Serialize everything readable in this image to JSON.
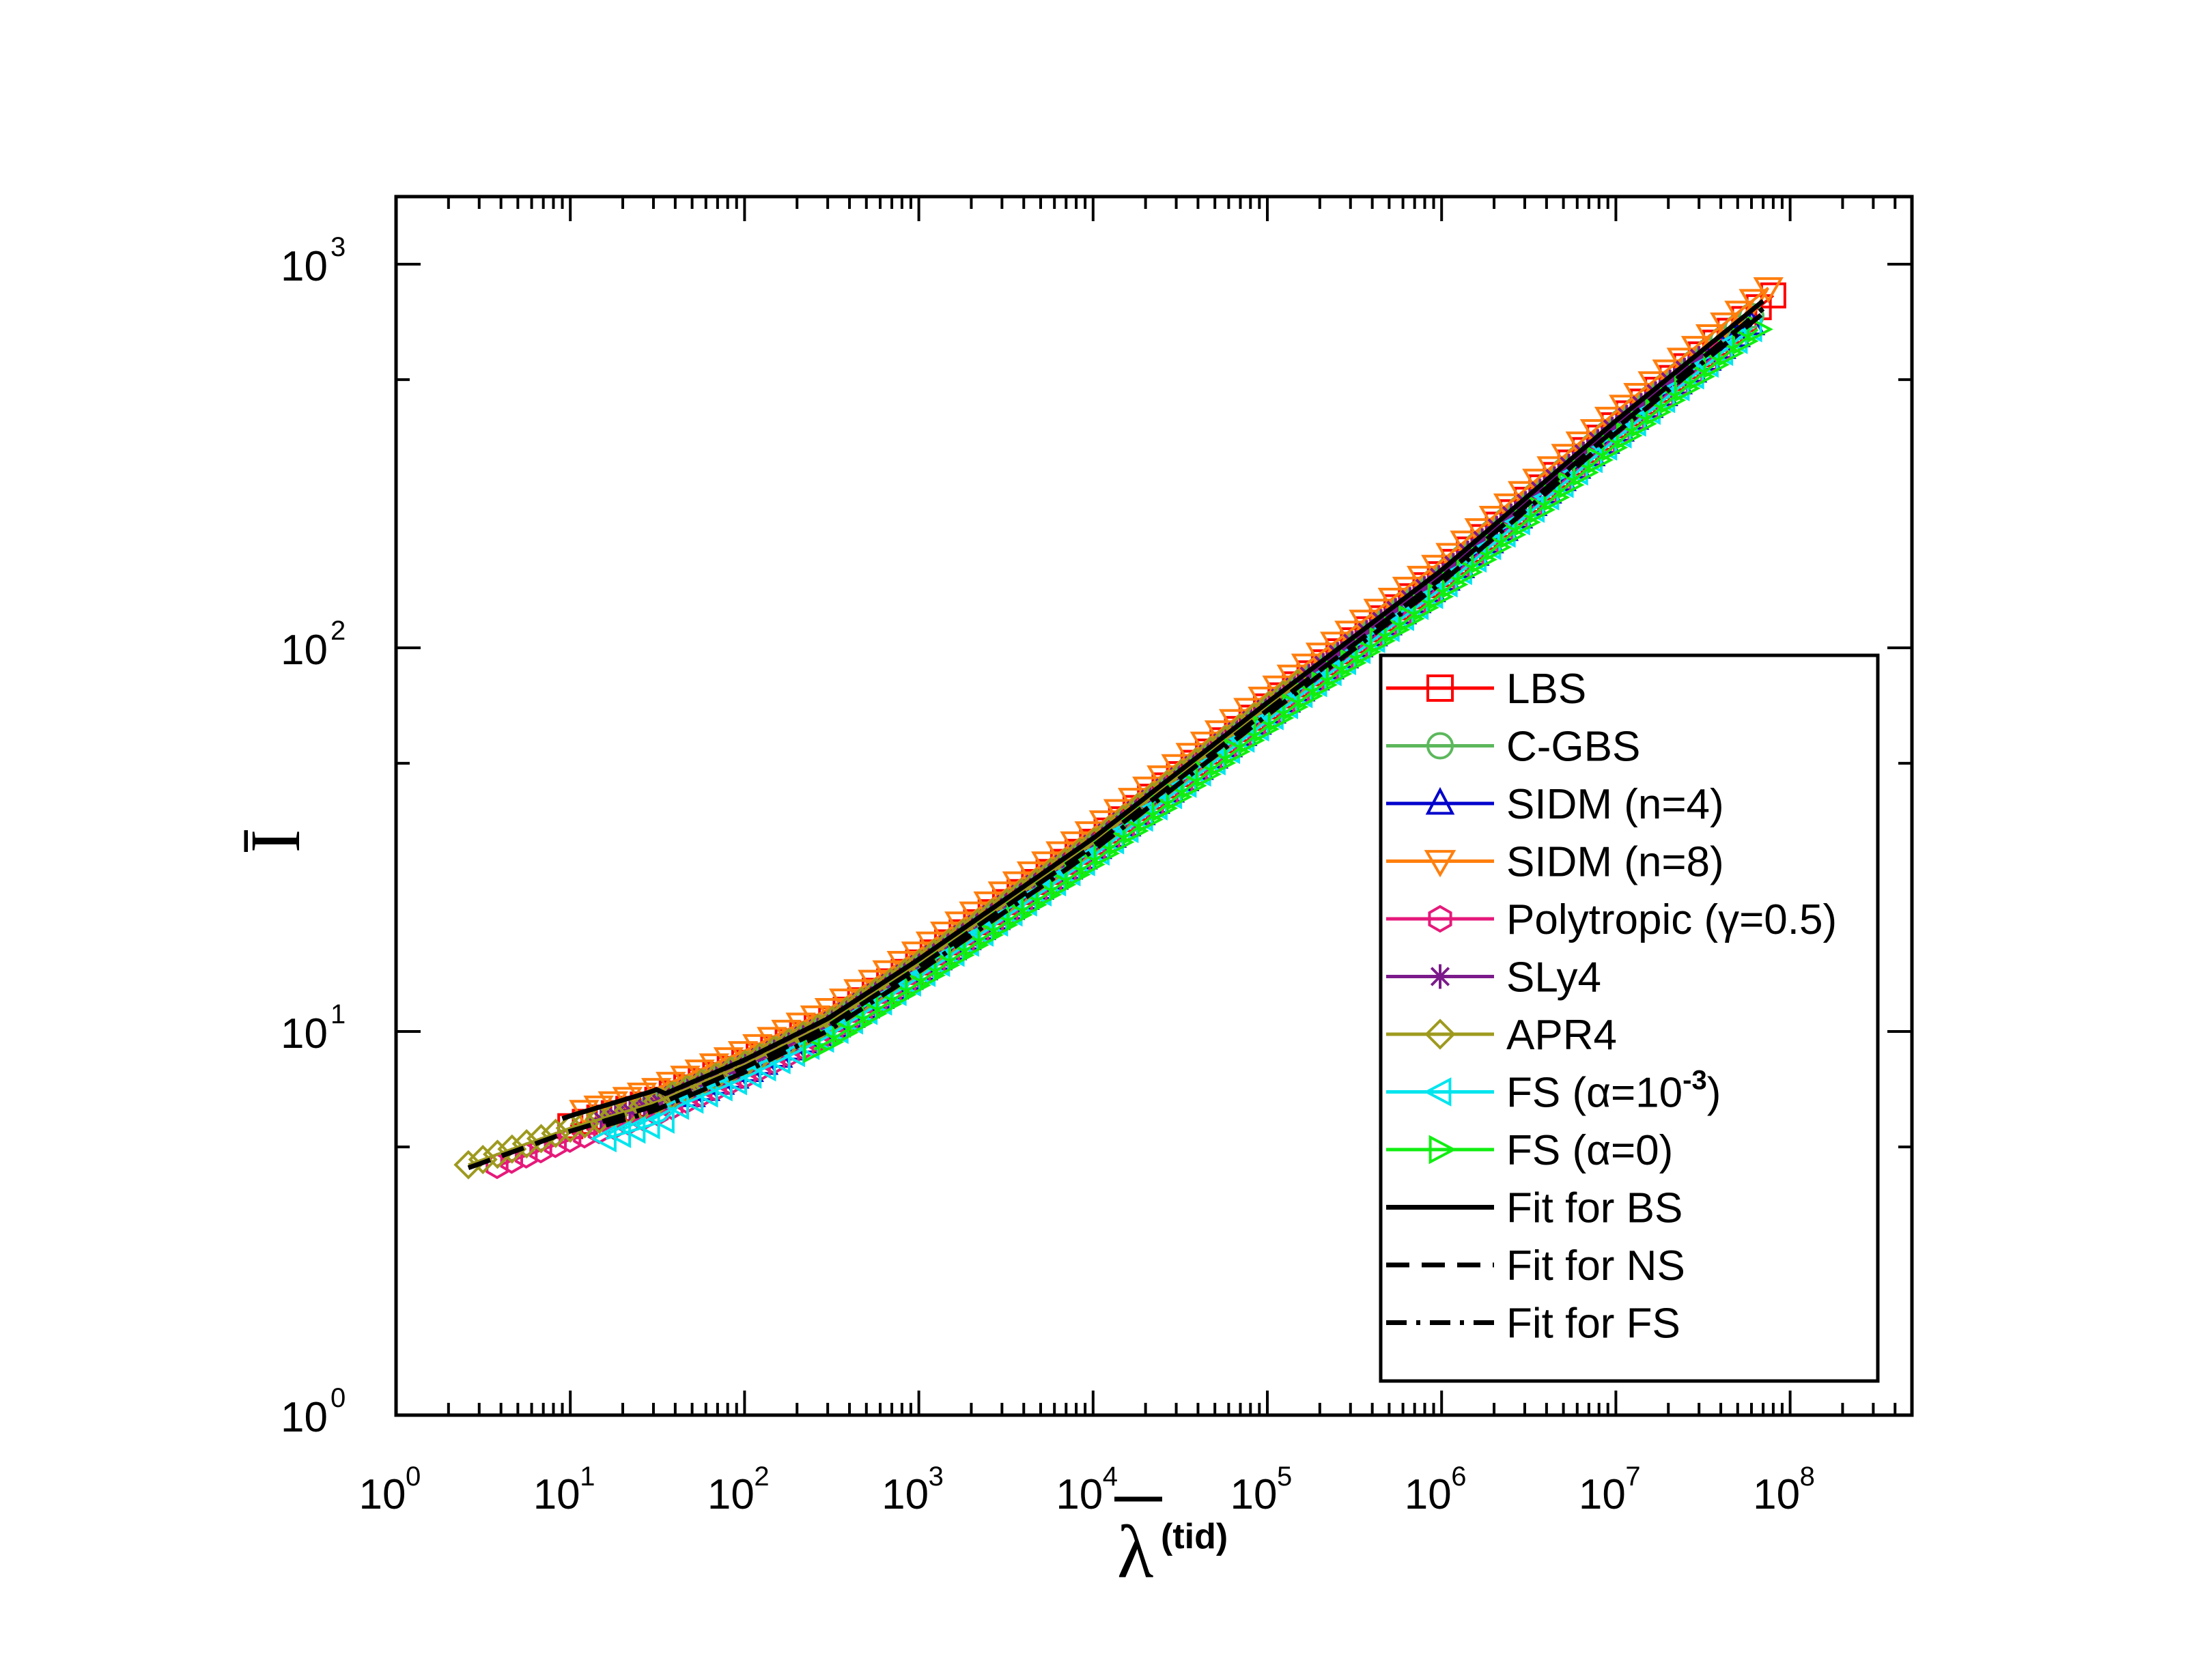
{
  "chart_data": {
    "type": "line",
    "title": "",
    "xlabel": "λ",
    "xlabel_sup": "(tid)",
    "ylabel": "Ī",
    "xscale": "log",
    "yscale": "log",
    "xlim": [
      1,
      500000000
    ],
    "ylim": [
      1,
      1500
    ],
    "x_tick_labels": [
      {
        "value": 1,
        "base": "10",
        "exp": "0"
      },
      {
        "value": 10,
        "base": "10",
        "exp": "1"
      },
      {
        "value": 100,
        "base": "10",
        "exp": "2"
      },
      {
        "value": 1000,
        "base": "10",
        "exp": "3"
      },
      {
        "value": 10000,
        "base": "10",
        "exp": "4"
      },
      {
        "value": 100000,
        "base": "10",
        "exp": "5"
      },
      {
        "value": 1000000,
        "base": "10",
        "exp": "6"
      },
      {
        "value": 10000000,
        "base": "10",
        "exp": "7"
      },
      {
        "value": 100000000,
        "base": "10",
        "exp": "8"
      }
    ],
    "y_tick_labels": [
      {
        "value": 1,
        "base": "10",
        "exp": "0"
      },
      {
        "value": 10,
        "base": "10",
        "exp": "1"
      },
      {
        "value": 100,
        "base": "10",
        "exp": "2"
      },
      {
        "value": 1000,
        "base": "10",
        "exp": "3"
      }
    ],
    "legend_position": "lower-right",
    "series": [
      {
        "name": "LBS",
        "color": "#ff0000",
        "marker": "square",
        "x_range": [
          10,
          80000000
        ]
      },
      {
        "name": "C-GBS",
        "color": "#5cb85c",
        "marker": "circle",
        "x_range": [
          30,
          60000000
        ]
      },
      {
        "name": "SIDM (n=4)",
        "color": "#0000cc",
        "marker": "triangle-up",
        "x_range": [
          50,
          60000000
        ]
      },
      {
        "name": "SIDM (n=8)",
        "color": "#ff7f0e",
        "marker": "triangle-down",
        "x_range": [
          12,
          75000000
        ]
      },
      {
        "name": "Polytropic (γ=0.5)",
        "color": "#e6197a",
        "marker": "hexagon",
        "x_range": [
          3.8,
          40000000
        ]
      },
      {
        "name": "SLy4",
        "color": "#7b1a8a",
        "marker": "star",
        "x_range": [
          15,
          30000000
        ]
      },
      {
        "name": "APR4",
        "color": "#9e9a1e",
        "marker": "diamond",
        "x_range": [
          2.6,
          150000
        ]
      },
      {
        "name": "FS (α=10",
        "name_sup": "-3",
        "name_suffix": ")",
        "color": "#00e5ee",
        "marker": "triangle-left",
        "x_range": [
          16,
          60000000
        ]
      },
      {
        "name": "FS (α=0)",
        "color": "#11ee11",
        "marker": "triangle-right",
        "x_range": [
          250,
          65000000
        ]
      },
      {
        "name": "Fit for BS",
        "color": "#000000",
        "line": "solid",
        "x_range": [
          9,
          70000000
        ]
      },
      {
        "name": "Fit for NS",
        "color": "#000000",
        "line": "dashed",
        "x_range": [
          2.6,
          70000000
        ]
      },
      {
        "name": "Fit for FS",
        "color": "#000000",
        "line": "dashdot",
        "x_range": [
          16,
          70000000
        ]
      }
    ],
    "reference_points": {
      "x": [
        3,
        10,
        30,
        100,
        300,
        1000,
        10000,
        100000,
        1000000,
        10000000,
        70000000
      ],
      "y": [
        4.6,
        5.6,
        6.5,
        8.2,
        10.5,
        15,
        31,
        70,
        155,
        380,
        780
      ]
    }
  }
}
